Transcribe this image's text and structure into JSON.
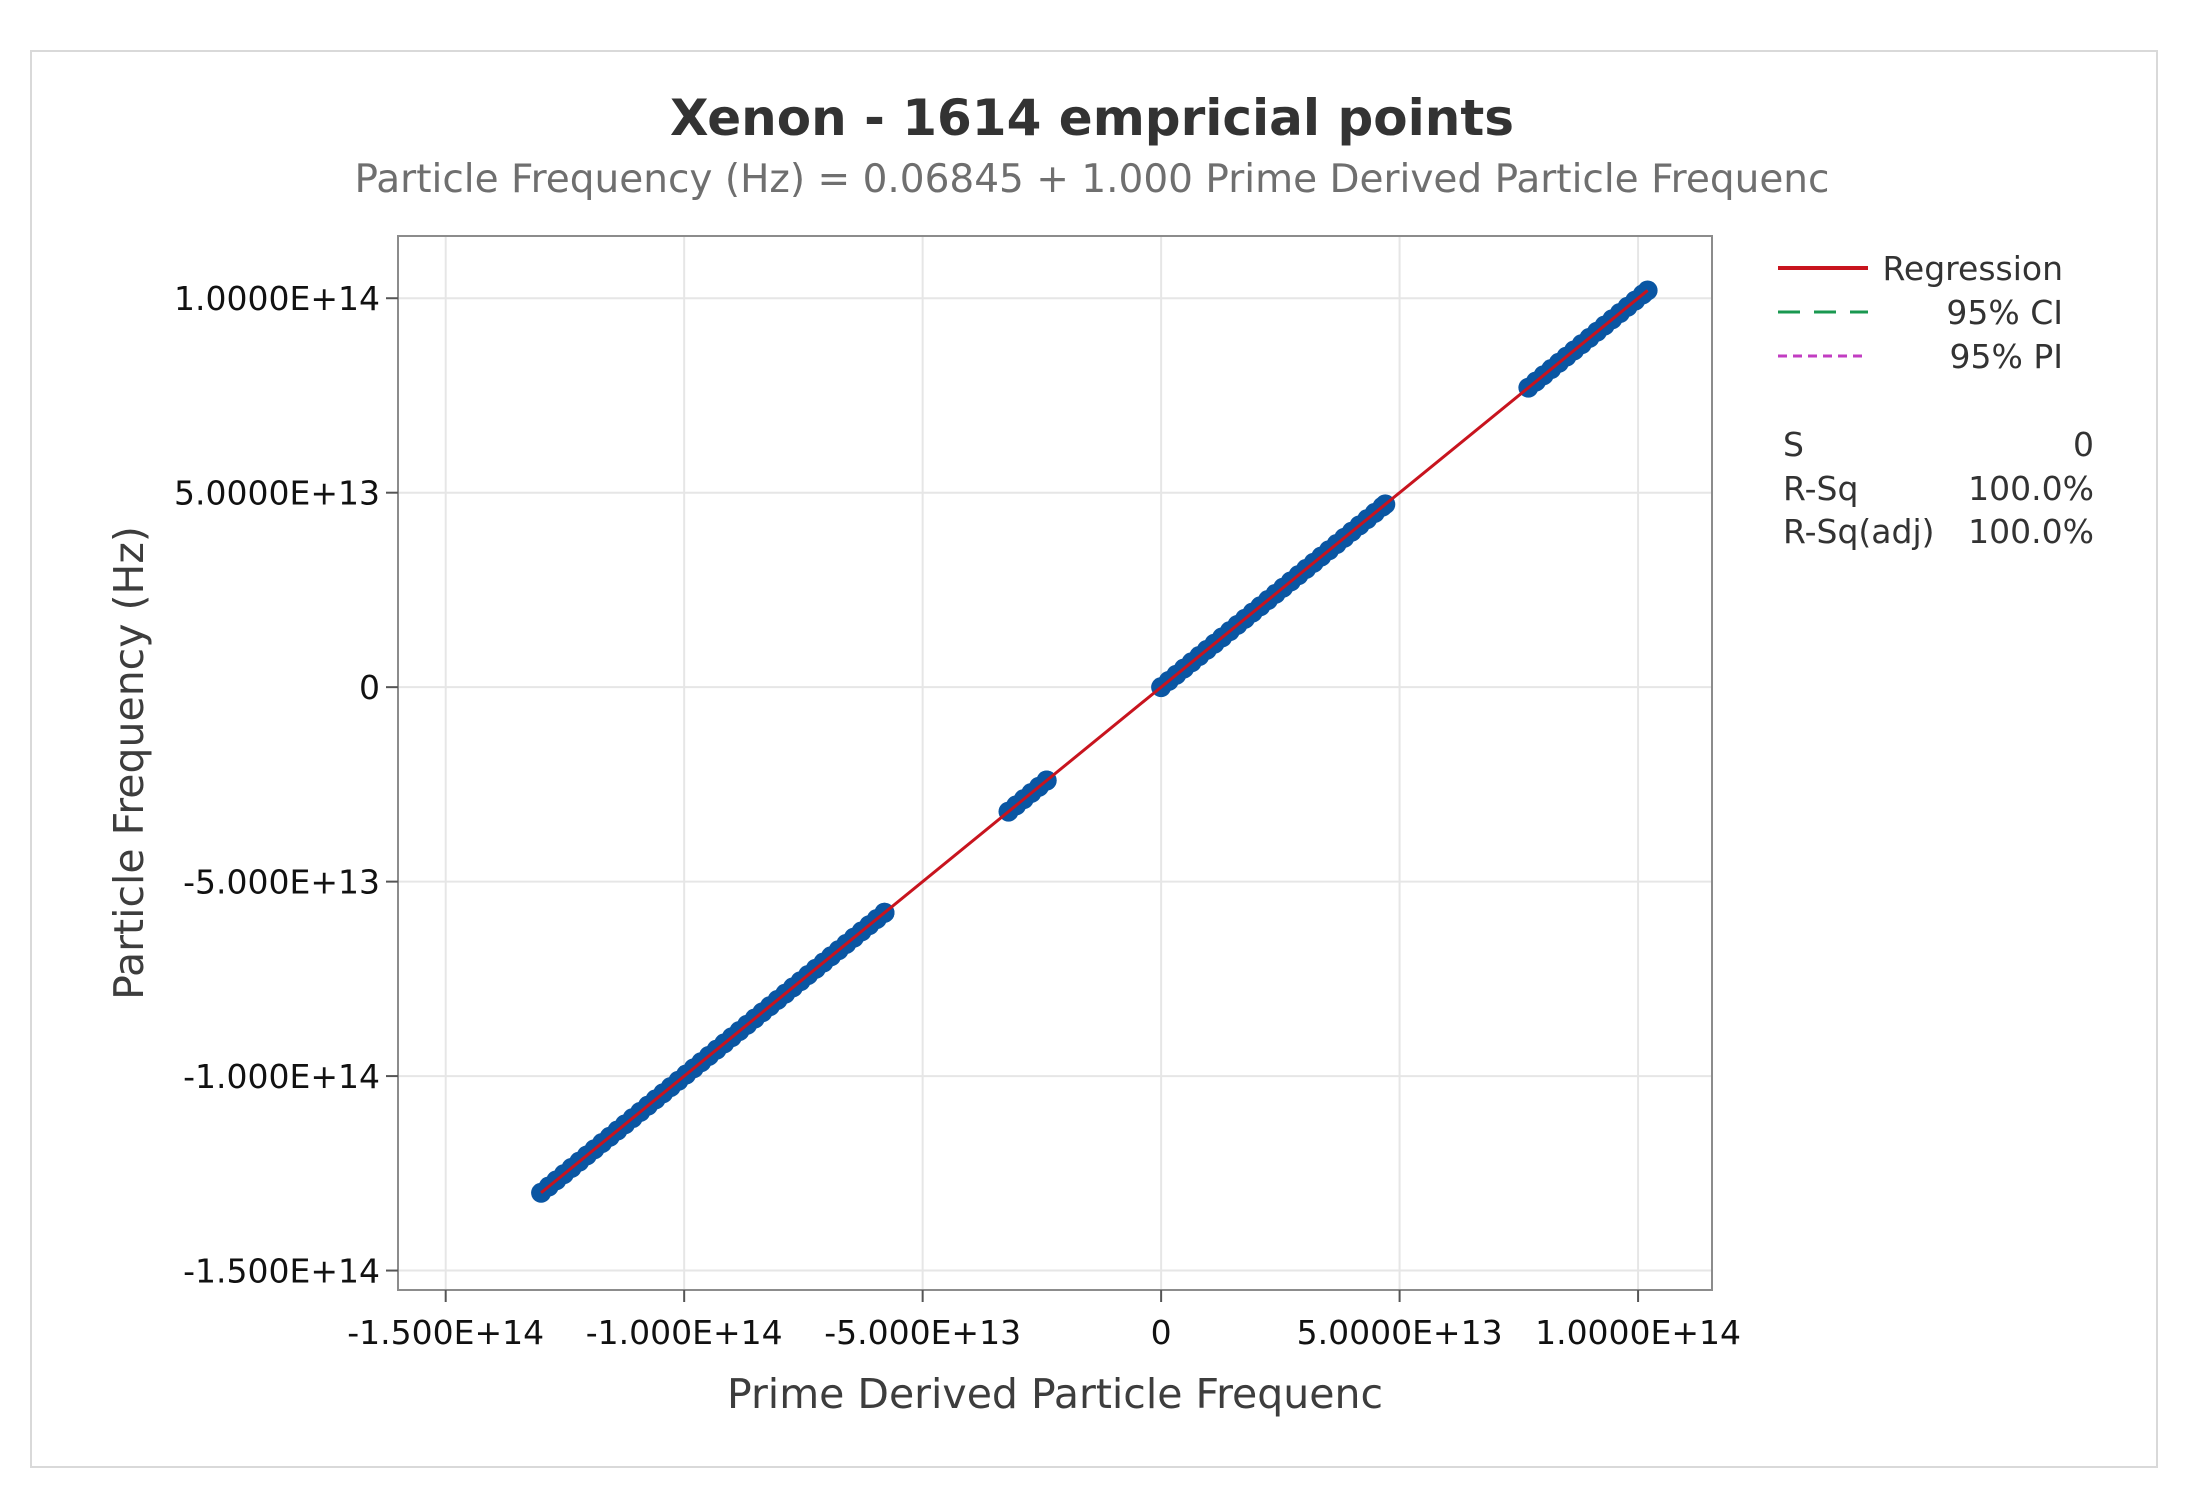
{
  "chart_data": {
    "type": "scatter",
    "title": "Xenon - 1614 empricial points",
    "subtitle": "Particle Frequency (Hz) = 0.06845 + 1.000 Prime Derived Particle Frequenc",
    "xlabel": "Prime Derived Particle Frequenc",
    "ylabel": "Particle Frequency (Hz)",
    "xlim": [
      -160000000000000.0,
      115500000000000.0
    ],
    "ylim": [
      -155000000000000.0,
      116000000000000.0
    ],
    "x_ticks": [
      {
        "value": -150000000000000.0,
        "label": "-1.500E+14"
      },
      {
        "value": -100000000000000.0,
        "label": "-1.000E+14"
      },
      {
        "value": -50000000000000.0,
        "label": "-5.000E+13"
      },
      {
        "value": 0,
        "label": "0"
      },
      {
        "value": 50000000000000.0,
        "label": "5.0000E+13"
      },
      {
        "value": 100000000000000.0,
        "label": "1.0000E+14"
      }
    ],
    "y_ticks": [
      {
        "value": 100000000000000.0,
        "label": "1.0000E+14"
      },
      {
        "value": 50000000000000.0,
        "label": "5.0000E+13"
      },
      {
        "value": 0,
        "label": "0"
      },
      {
        "value": -50000000000000.0,
        "label": "-5.000E+13"
      },
      {
        "value": -100000000000000.0,
        "label": "-1.000E+14"
      },
      {
        "value": -150000000000000.0,
        "label": "-1.500E+14"
      }
    ],
    "grid": true,
    "regression": {
      "intercept": 0.06845,
      "slope": 1.0
    },
    "series": [
      {
        "name": "Observed",
        "color": "#0a56a3",
        "clusters": [
          {
            "x_start": -130000000000000.0,
            "x_end": -58000000000000.0
          },
          {
            "x_start": -32000000000000.0,
            "x_end": -24000000000000.0
          },
          {
            "x_start": 0,
            "x_end": 47000000000000.0
          },
          {
            "x_start": 77000000000000.0,
            "x_end": 102000000000000.0
          }
        ]
      }
    ],
    "legend": {
      "placement": "right",
      "items": [
        {
          "label": "Regression",
          "color": "#c8141e",
          "style": "solid"
        },
        {
          "label": "95% CI",
          "color": "#1a9850",
          "style": "dashed"
        },
        {
          "label": "95% PI",
          "color": "#c23dc2",
          "style": "dotted"
        }
      ]
    },
    "stats": [
      {
        "label": "S",
        "value": "0"
      },
      {
        "label": "R-Sq",
        "value": "100.0%"
      },
      {
        "label": "R-Sq(adj)",
        "value": "100.0%"
      }
    ]
  }
}
